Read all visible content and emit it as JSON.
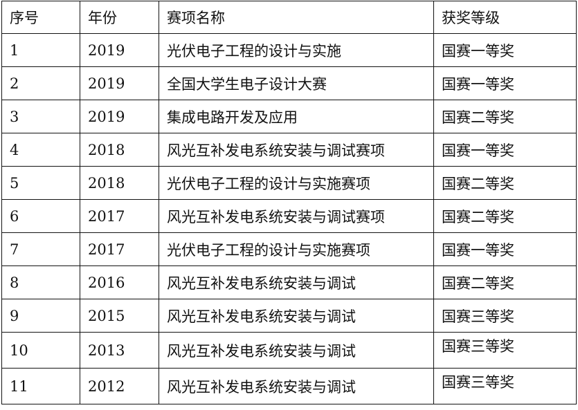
{
  "table": {
    "headers": [
      "序号",
      "年份",
      "赛项名称",
      "获奖等级"
    ],
    "rows": [
      [
        "1",
        "2019",
        "光伏电子工程的设计与实施",
        "国赛一等奖"
      ],
      [
        "2",
        "2019",
        "全国大学生电子设计大赛",
        "国赛一等奖"
      ],
      [
        "3",
        "2019",
        "集成电路开发及应用",
        "国赛二等奖"
      ],
      [
        "4",
        "2018",
        "风光互补发电系统安装与调试赛项",
        "国赛一等奖"
      ],
      [
        "5",
        "2018",
        "光伏电子工程的设计与实施赛项",
        "国赛二等奖"
      ],
      [
        "6",
        "2017",
        "风光互补发电系统安装与调试赛项",
        "国赛二等奖"
      ],
      [
        "7",
        "2017",
        "光伏电子工程的设计与实施赛项",
        "国赛一等奖"
      ],
      [
        "8",
        "2016",
        "风光互补发电系统安装与调试",
        "国赛二等奖"
      ],
      [
        "9",
        "2015",
        "风光互补发电系统安装与调试",
        "国赛三等奖"
      ],
      [
        "10",
        "2013",
        "风光互补发电系统安装与调试",
        "国赛三等奖"
      ],
      [
        "11",
        "2012",
        "风光互补发电系统安装与调试",
        "国赛三等奖"
      ]
    ]
  }
}
